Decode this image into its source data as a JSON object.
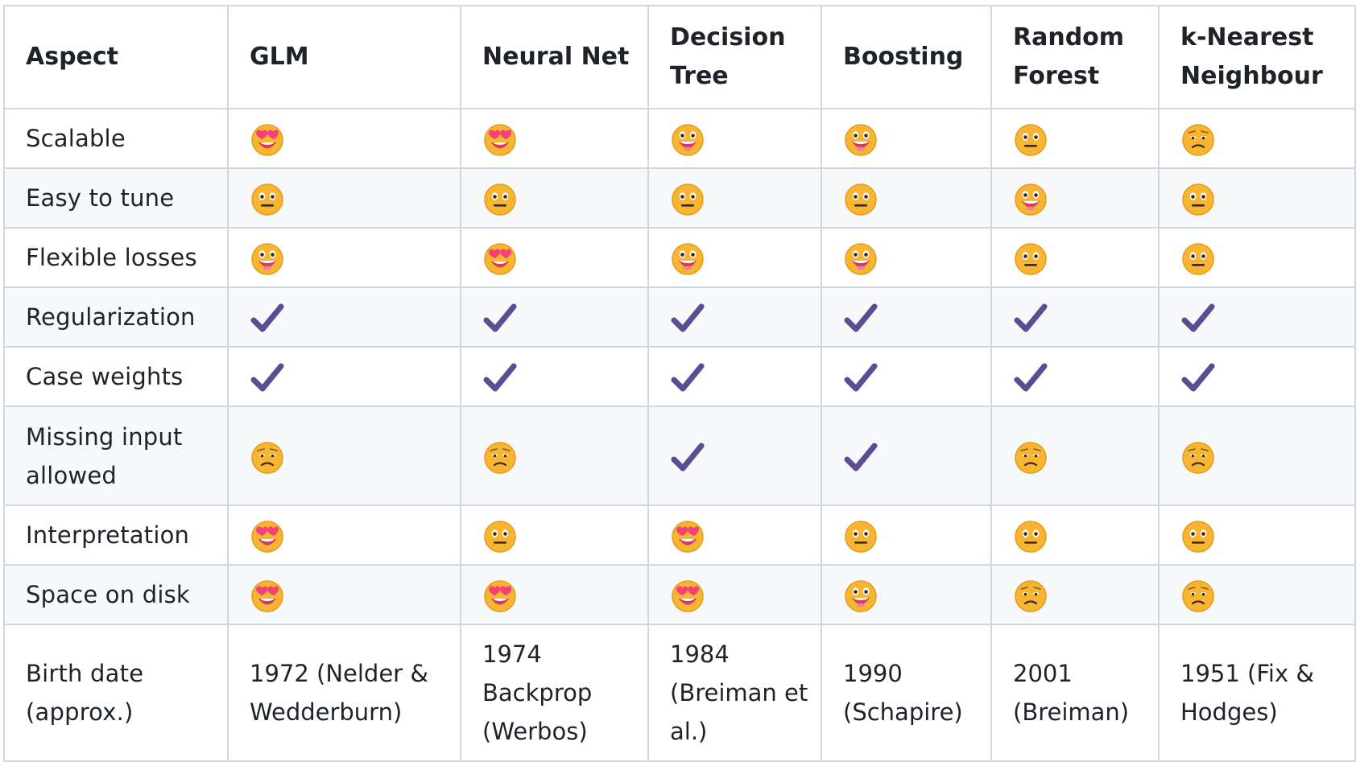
{
  "headers": [
    "Aspect",
    "GLM",
    "Neural Net",
    "Decision Tree",
    "Boosting",
    "Random Forest",
    "k-Nearest Neighbour"
  ],
  "icon_colors": {
    "face": "#f7b531",
    "face_edge": "#e89a1c",
    "heart": "#f43f7a",
    "mouth": "#d93a57",
    "check": "#5c4d93"
  },
  "rows": [
    {
      "aspect": "Scalable",
      "cells": [
        "heart-eyes-icon",
        "heart-eyes-icon",
        "grinning-face-icon",
        "grinning-face-icon",
        "neutral-face-icon",
        "sad-face-icon"
      ]
    },
    {
      "aspect": "Easy to tune",
      "cells": [
        "neutral-face-icon",
        "neutral-face-icon",
        "neutral-face-icon",
        "neutral-face-icon",
        "grinning-face-icon",
        "neutral-face-icon"
      ]
    },
    {
      "aspect": "Flexible losses",
      "cells": [
        "grinning-face-icon",
        "heart-eyes-icon",
        "grinning-face-icon",
        "grinning-face-icon",
        "neutral-face-icon",
        "neutral-face-icon"
      ]
    },
    {
      "aspect": "Regularization",
      "cells": [
        "checkmark-icon",
        "checkmark-icon",
        "checkmark-icon",
        "checkmark-icon",
        "checkmark-icon",
        "checkmark-icon"
      ]
    },
    {
      "aspect": "Case weights",
      "cells": [
        "checkmark-icon",
        "checkmark-icon",
        "checkmark-icon",
        "checkmark-icon",
        "checkmark-icon",
        "checkmark-icon"
      ]
    },
    {
      "aspect": "Missing input allowed",
      "cells": [
        "sad-face-icon",
        "sad-face-icon",
        "checkmark-icon",
        "checkmark-icon",
        "sad-face-icon",
        "sad-face-icon"
      ]
    },
    {
      "aspect": "Interpretation",
      "cells": [
        "heart-eyes-icon",
        "neutral-face-icon",
        "heart-eyes-icon",
        "neutral-face-icon",
        "neutral-face-icon",
        "neutral-face-icon"
      ]
    },
    {
      "aspect": "Space on disk",
      "cells": [
        "heart-eyes-icon",
        "heart-eyes-icon",
        "heart-eyes-icon",
        "grinning-face-icon",
        "sad-face-icon",
        "sad-face-icon"
      ]
    }
  ],
  "birth": {
    "aspect": "Birth date (approx.)",
    "cells": [
      "1972 (Nelder & Wedderburn)",
      "1974 Backprop (Werbos)",
      "1984 (Breiman et al.)",
      "1990 (Schapire)",
      "2001 (Breiman)",
      "1951 (Fix & Hodges)"
    ]
  }
}
